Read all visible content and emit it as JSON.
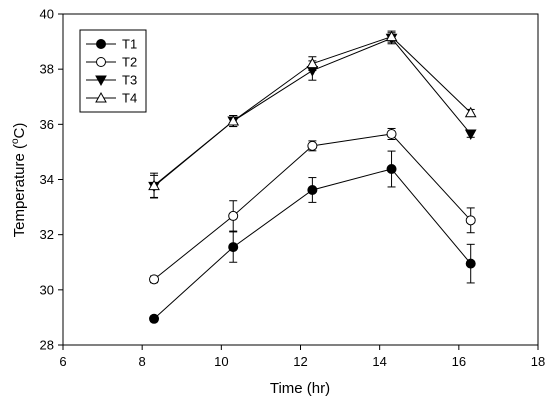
{
  "chart_data": {
    "type": "line",
    "xlabel": "Time (hr)",
    "ylabel_prefix": "Temperature (",
    "ylabel_sup": "o",
    "ylabel_suffix": "C)",
    "xlim": [
      6,
      18
    ],
    "ylim": [
      28,
      40
    ],
    "xticks": [
      6,
      8,
      10,
      12,
      14,
      16,
      18
    ],
    "yticks": [
      28,
      30,
      32,
      34,
      36,
      38,
      40
    ],
    "grid": false,
    "legend_position": "top-left",
    "x": [
      8.3,
      10.3,
      12.3,
      14.3,
      16.3
    ],
    "series": [
      {
        "name": "T1",
        "marker": "circle-filled",
        "values": [
          28.95,
          31.55,
          33.62,
          34.38,
          30.95
        ],
        "errors": [
          0.1,
          0.55,
          0.45,
          0.65,
          0.7
        ]
      },
      {
        "name": "T2",
        "marker": "circle-open",
        "values": [
          30.38,
          32.68,
          35.22,
          35.65,
          32.52
        ],
        "errors": [
          0.12,
          0.55,
          0.18,
          0.2,
          0.45
        ]
      },
      {
        "name": "T3",
        "marker": "triangle-down-filled",
        "values": [
          33.75,
          36.12,
          37.95,
          39.12,
          35.65
        ],
        "errors": [
          0.4,
          0.2,
          0.35,
          0.2,
          0.12
        ]
      },
      {
        "name": "T4",
        "marker": "triangle-up-open",
        "values": [
          33.78,
          36.12,
          38.2,
          39.18,
          36.42
        ],
        "errors": [
          0.45,
          0.2,
          0.25,
          0.2,
          0.12
        ]
      }
    ]
  }
}
